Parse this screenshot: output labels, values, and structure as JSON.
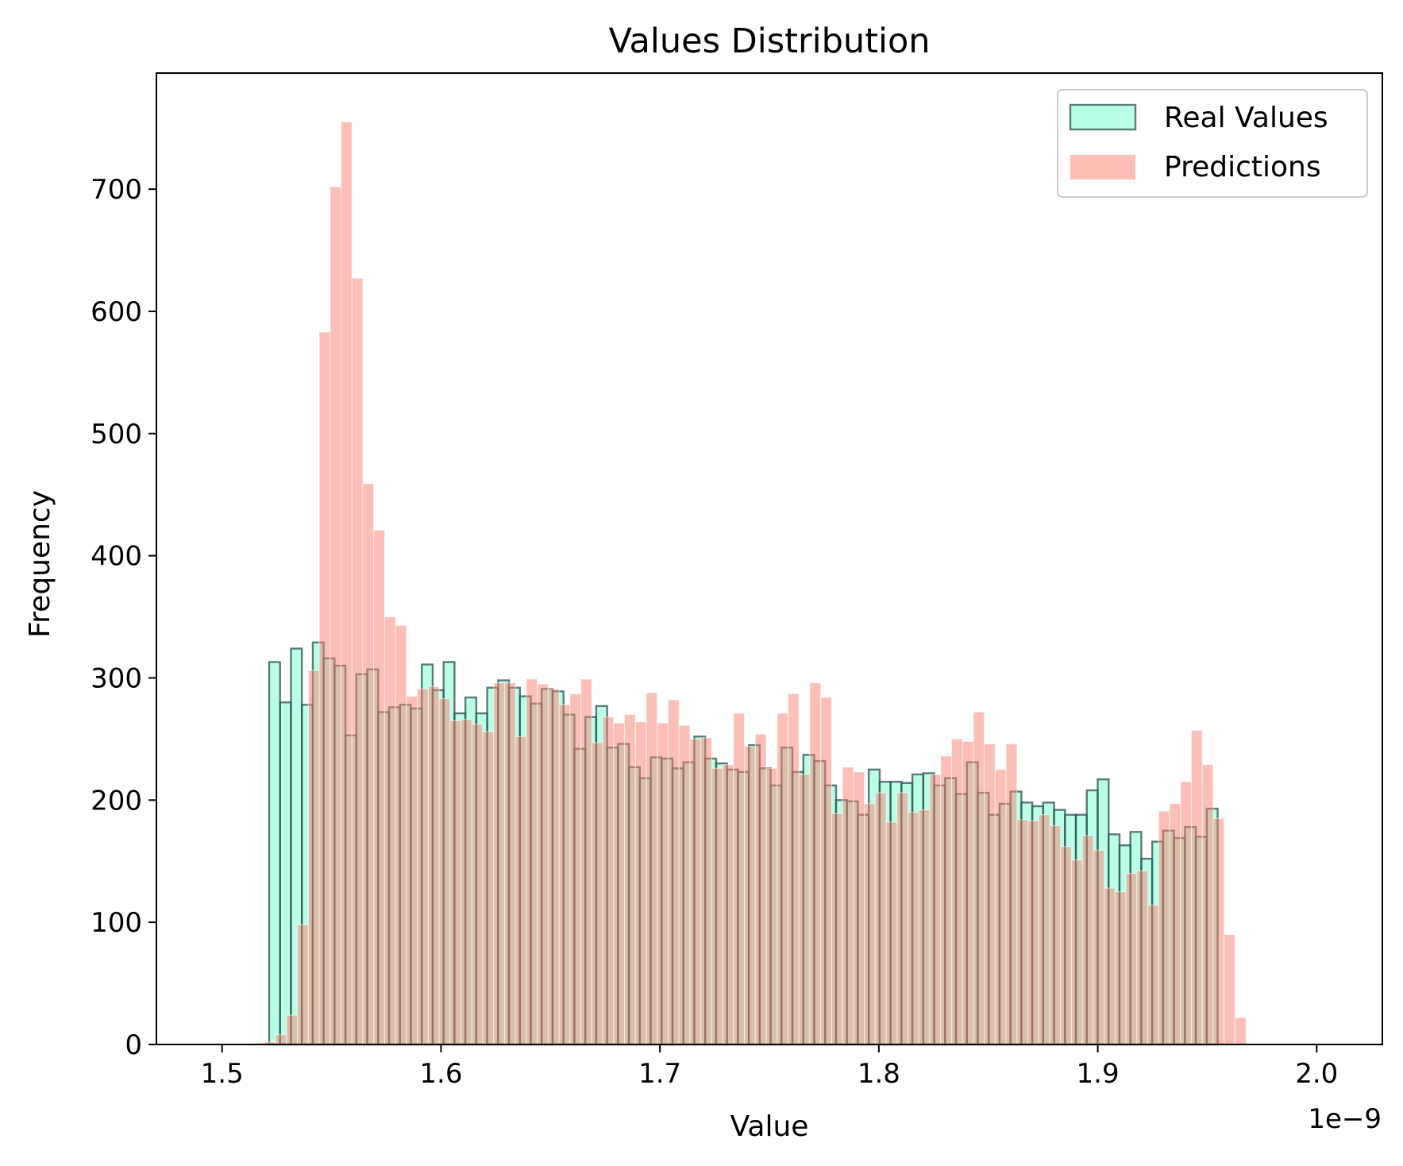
{
  "chart_data": {
    "type": "bar",
    "subtype": "overlapping-histogram",
    "title": "Values Distribution",
    "xlabel": "Value",
    "ylabel": "Frequency",
    "x_offset_label": "1e−9",
    "x_scale_exponent": -9,
    "xlim": [
      1.47,
      2.03
    ],
    "ylim": [
      0,
      795
    ],
    "xticks": [
      1.5,
      1.6,
      1.7,
      1.8,
      1.9,
      2.0
    ],
    "xtick_labels": [
      "1.5",
      "1.6",
      "1.7",
      "1.8",
      "1.9",
      "2.0"
    ],
    "yticks": [
      0,
      100,
      200,
      300,
      400,
      500,
      600,
      700
    ],
    "ytick_labels": [
      "0",
      "100",
      "200",
      "300",
      "400",
      "500",
      "600",
      "700"
    ],
    "grid": false,
    "legend_position": "top-right",
    "series": [
      {
        "name": "Real Values",
        "color": "#7fffd4",
        "edgecolor": "#2f4f4f",
        "alpha": 0.55,
        "bin_start": 1.5215,
        "bin_width": 0.00498,
        "values": [
          313,
          280,
          324,
          278,
          329,
          316,
          310,
          253,
          303,
          307,
          272,
          276,
          278,
          275,
          311,
          290,
          313,
          271,
          284,
          271,
          292,
          298,
          292,
          285,
          279,
          291,
          289,
          270,
          242,
          268,
          277,
          243,
          246,
          227,
          218,
          235,
          234,
          226,
          231,
          252,
          234,
          230,
          225,
          223,
          245,
          226,
          212,
          243,
          223,
          237,
          232,
          212,
          200,
          199,
          188,
          225,
          215,
          215,
          214,
          221,
          222,
          212,
          218,
          205,
          231,
          206,
          188,
          197,
          207,
          198,
          195,
          198,
          192,
          188,
          188,
          208,
          217,
          172,
          163,
          174,
          152,
          166,
          175,
          169,
          178,
          170,
          193
        ]
      },
      {
        "name": "Predictions",
        "color": "#fa8072",
        "alpha": 0.5,
        "bin_start": 1.5145,
        "bin_width": 0.00498,
        "values": [
          1,
          2,
          8,
          24,
          98,
          306,
          583,
          702,
          755,
          627,
          459,
          421,
          350,
          343,
          285,
          291,
          293,
          283,
          265,
          266,
          262,
          256,
          296,
          296,
          252,
          299,
          295,
          291,
          278,
          287,
          299,
          247,
          268,
          263,
          270,
          264,
          288,
          263,
          282,
          261,
          250,
          251,
          226,
          229,
          271,
          244,
          254,
          226,
          271,
          287,
          221,
          296,
          284,
          189,
          227,
          223,
          197,
          206,
          182,
          206,
          190,
          192,
          221,
          236,
          250,
          248,
          272,
          246,
          225,
          246,
          184,
          183,
          188,
          179,
          162,
          151,
          171,
          159,
          128,
          125,
          140,
          142,
          114,
          191,
          197,
          215,
          257,
          229,
          185,
          90,
          22
        ]
      }
    ]
  }
}
